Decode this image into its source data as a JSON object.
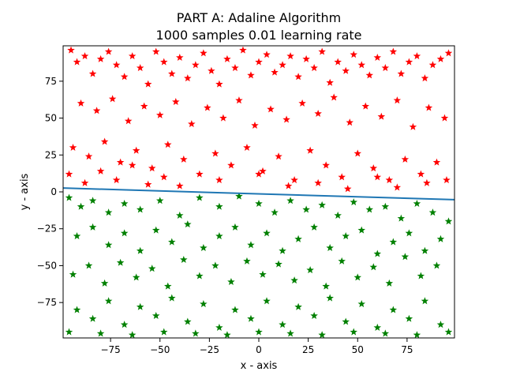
{
  "chart_data": {
    "type": "scatter",
    "title": "PART A: Adaline Algorithm",
    "subtitle": "1000 samples 0.01 learning rate",
    "xlabel": "x - axis",
    "ylabel": "y - axis",
    "xlim": [
      -99,
      99
    ],
    "ylim": [
      -99,
      99
    ],
    "xticks": [
      -75,
      -50,
      -25,
      0,
      25,
      50,
      75
    ],
    "yticks": [
      -75,
      -50,
      -25,
      0,
      25,
      50,
      75
    ],
    "xtick_labels": [
      "−75",
      "−50",
      "−25",
      "0",
      "25",
      "50",
      "75"
    ],
    "ytick_labels": [
      "−75",
      "−50",
      "−25",
      "0",
      "25",
      "50",
      "75"
    ],
    "grid": false,
    "marker": "star",
    "series": [
      {
        "color": "#ff0000",
        "region": "above decision line",
        "count": 500,
        "points": [
          [
            -95,
            96
          ],
          [
            -92,
            88
          ],
          [
            -88,
            92
          ],
          [
            -84,
            80
          ],
          [
            -80,
            90
          ],
          [
            -76,
            95
          ],
          [
            -72,
            86
          ],
          [
            -68,
            78
          ],
          [
            -64,
            92
          ],
          [
            -60,
            84
          ],
          [
            -56,
            73
          ],
          [
            -52,
            95
          ],
          [
            -48,
            88
          ],
          [
            -44,
            80
          ],
          [
            -40,
            91
          ],
          [
            -36,
            77
          ],
          [
            -32,
            86
          ],
          [
            -28,
            94
          ],
          [
            -24,
            82
          ],
          [
            -20,
            73
          ],
          [
            -16,
            90
          ],
          [
            -12,
            84
          ],
          [
            -8,
            96
          ],
          [
            -4,
            79
          ],
          [
            0,
            88
          ],
          [
            4,
            93
          ],
          [
            8,
            81
          ],
          [
            12,
            86
          ],
          [
            16,
            92
          ],
          [
            20,
            78
          ],
          [
            24,
            90
          ],
          [
            28,
            84
          ],
          [
            32,
            95
          ],
          [
            36,
            74
          ],
          [
            40,
            88
          ],
          [
            44,
            82
          ],
          [
            48,
            93
          ],
          [
            52,
            86
          ],
          [
            56,
            79
          ],
          [
            60,
            91
          ],
          [
            64,
            84
          ],
          [
            68,
            95
          ],
          [
            72,
            80
          ],
          [
            76,
            88
          ],
          [
            80,
            92
          ],
          [
            84,
            77
          ],
          [
            88,
            86
          ],
          [
            92,
            90
          ],
          [
            96,
            94
          ],
          [
            -90,
            60
          ],
          [
            -82,
            55
          ],
          [
            -74,
            63
          ],
          [
            -66,
            48
          ],
          [
            -58,
            58
          ],
          [
            -50,
            52
          ],
          [
            -42,
            61
          ],
          [
            -34,
            46
          ],
          [
            -26,
            57
          ],
          [
            -18,
            50
          ],
          [
            -10,
            62
          ],
          [
            -2,
            45
          ],
          [
            6,
            56
          ],
          [
            14,
            49
          ],
          [
            22,
            60
          ],
          [
            30,
            53
          ],
          [
            38,
            64
          ],
          [
            46,
            47
          ],
          [
            54,
            58
          ],
          [
            62,
            51
          ],
          [
            70,
            62
          ],
          [
            78,
            44
          ],
          [
            86,
            57
          ],
          [
            94,
            50
          ],
          [
            -94,
            30
          ],
          [
            -86,
            24
          ],
          [
            -78,
            34
          ],
          [
            -70,
            20
          ],
          [
            -62,
            28
          ],
          [
            -54,
            16
          ],
          [
            -46,
            32
          ],
          [
            -38,
            22
          ],
          [
            -30,
            12
          ],
          [
            -22,
            26
          ],
          [
            -14,
            18
          ],
          [
            -6,
            30
          ],
          [
            2,
            14
          ],
          [
            10,
            24
          ],
          [
            18,
            8
          ],
          [
            26,
            28
          ],
          [
            34,
            18
          ],
          [
            42,
            10
          ],
          [
            50,
            26
          ],
          [
            58,
            16
          ],
          [
            66,
            8
          ],
          [
            74,
            22
          ],
          [
            82,
            12
          ],
          [
            90,
            20
          ],
          [
            -96,
            12
          ],
          [
            -88,
            6
          ],
          [
            -80,
            14
          ],
          [
            -72,
            8
          ],
          [
            -64,
            18
          ],
          [
            -56,
            5
          ],
          [
            -48,
            10
          ],
          [
            -40,
            4
          ],
          [
            -20,
            8
          ],
          [
            0,
            12
          ],
          [
            15,
            4
          ],
          [
            30,
            6
          ],
          [
            45,
            2
          ],
          [
            60,
            10
          ],
          [
            70,
            3
          ],
          [
            85,
            6
          ],
          [
            95,
            8
          ]
        ]
      },
      {
        "color": "#008000",
        "region": "below decision line",
        "count": 500,
        "points": [
          [
            -96,
            -4
          ],
          [
            -90,
            -10
          ],
          [
            -84,
            -6
          ],
          [
            -76,
            -14
          ],
          [
            -68,
            -8
          ],
          [
            -60,
            -12
          ],
          [
            -50,
            -6
          ],
          [
            -40,
            -16
          ],
          [
            -30,
            -4
          ],
          [
            -20,
            -10
          ],
          [
            -10,
            -3
          ],
          [
            0,
            -8
          ],
          [
            8,
            -14
          ],
          [
            16,
            -6
          ],
          [
            24,
            -12
          ],
          [
            32,
            -9
          ],
          [
            40,
            -16
          ],
          [
            48,
            -7
          ],
          [
            56,
            -12
          ],
          [
            64,
            -10
          ],
          [
            72,
            -18
          ],
          [
            80,
            -8
          ],
          [
            88,
            -14
          ],
          [
            96,
            -20
          ],
          [
            -92,
            -30
          ],
          [
            -84,
            -24
          ],
          [
            -76,
            -36
          ],
          [
            -68,
            -28
          ],
          [
            -60,
            -40
          ],
          [
            -52,
            -26
          ],
          [
            -44,
            -34
          ],
          [
            -36,
            -22
          ],
          [
            -28,
            -38
          ],
          [
            -20,
            -30
          ],
          [
            -12,
            -24
          ],
          [
            -4,
            -36
          ],
          [
            4,
            -28
          ],
          [
            12,
            -40
          ],
          [
            20,
            -32
          ],
          [
            28,
            -24
          ],
          [
            36,
            -38
          ],
          [
            44,
            -30
          ],
          [
            52,
            -26
          ],
          [
            60,
            -42
          ],
          [
            68,
            -34
          ],
          [
            76,
            -28
          ],
          [
            84,
            -40
          ],
          [
            92,
            -32
          ],
          [
            -94,
            -56
          ],
          [
            -86,
            -50
          ],
          [
            -78,
            -62
          ],
          [
            -70,
            -48
          ],
          [
            -62,
            -58
          ],
          [
            -54,
            -52
          ],
          [
            -46,
            -64
          ],
          [
            -38,
            -46
          ],
          [
            -30,
            -57
          ],
          [
            -22,
            -50
          ],
          [
            -14,
            -61
          ],
          [
            -6,
            -47
          ],
          [
            2,
            -56
          ],
          [
            10,
            -49
          ],
          [
            18,
            -60
          ],
          [
            26,
            -53
          ],
          [
            34,
            -64
          ],
          [
            42,
            -47
          ],
          [
            50,
            -58
          ],
          [
            58,
            -51
          ],
          [
            66,
            -62
          ],
          [
            74,
            -44
          ],
          [
            82,
            -57
          ],
          [
            90,
            -50
          ],
          [
            -92,
            -80
          ],
          [
            -84,
            -86
          ],
          [
            -76,
            -74
          ],
          [
            -68,
            -90
          ],
          [
            -60,
            -78
          ],
          [
            -52,
            -84
          ],
          [
            -44,
            -72
          ],
          [
            -36,
            -88
          ],
          [
            -28,
            -76
          ],
          [
            -20,
            -92
          ],
          [
            -12,
            -80
          ],
          [
            -4,
            -86
          ],
          [
            4,
            -74
          ],
          [
            12,
            -90
          ],
          [
            20,
            -78
          ],
          [
            28,
            -84
          ],
          [
            36,
            -72
          ],
          [
            44,
            -88
          ],
          [
            52,
            -76
          ],
          [
            60,
            -92
          ],
          [
            68,
            -80
          ],
          [
            76,
            -86
          ],
          [
            84,
            -74
          ],
          [
            92,
            -90
          ],
          [
            -96,
            -95
          ],
          [
            -80,
            -96
          ],
          [
            -64,
            -97
          ],
          [
            -48,
            -95
          ],
          [
            -32,
            -96
          ],
          [
            -16,
            -97
          ],
          [
            0,
            -95
          ],
          [
            16,
            -96
          ],
          [
            32,
            -97
          ],
          [
            48,
            -95
          ],
          [
            64,
            -96
          ],
          [
            80,
            -97
          ],
          [
            96,
            -95
          ]
        ]
      }
    ],
    "decision_line": {
      "color": "#1f77b4",
      "points": [
        [
          -99,
          2.6
        ],
        [
          99,
          -5.3
        ]
      ]
    }
  }
}
